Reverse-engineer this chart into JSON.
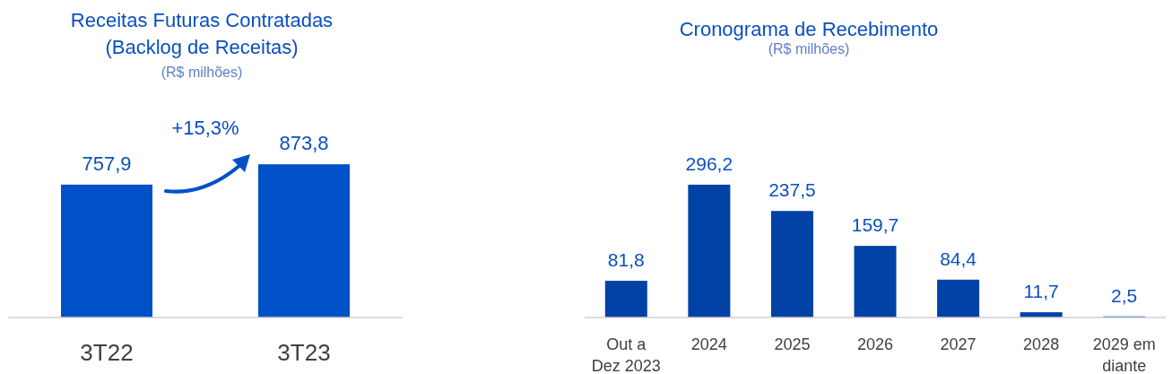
{
  "chart_data": [
    {
      "type": "bar",
      "title": "Receitas Futuras Contratadas (Backlog de Receitas)",
      "subtitle": "(R$ milhões)",
      "categories": [
        "3T22",
        "3T23"
      ],
      "values": [
        757.9,
        873.8
      ],
      "value_labels": [
        "757,9",
        "873,8"
      ],
      "color": "#0050c8",
      "annotations": [
        "+15,3%"
      ]
    },
    {
      "type": "bar",
      "title": "Cronograma de Recebimento",
      "subtitle": "(R$ milhões)",
      "categories": [
        "Out a Dez 2023",
        "2024",
        "2025",
        "2026",
        "2027",
        "2028",
        "2029 em diante"
      ],
      "values": [
        81.8,
        296.2,
        237.5,
        159.7,
        84.4,
        11.7,
        2.5
      ],
      "value_labels": [
        "81,8",
        "296,2",
        "237,5",
        "159,7",
        "84,4",
        "11,7",
        "2,5"
      ],
      "color": "#0042a6"
    }
  ]
}
